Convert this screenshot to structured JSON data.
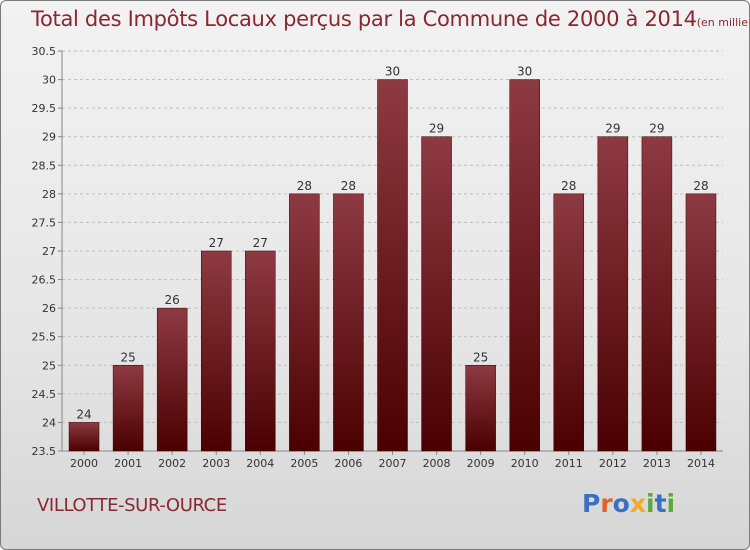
{
  "title": "Total des Impôts Locaux perçus par la Commune de 2000 à 2014",
  "title_unit": "(en milliers d'€)",
  "commune": "VILLOTTE-SUR-OURCE",
  "logo": {
    "text": "Proxiti",
    "letters": [
      {
        "ch": "P",
        "color": "#3a6fc1"
      },
      {
        "ch": "r",
        "color": "#e5612a"
      },
      {
        "ch": "o",
        "color": "#3a6fc1"
      },
      {
        "ch": "x",
        "color": "#f2a82a"
      },
      {
        "ch": "i",
        "color": "#5aab3c"
      },
      {
        "ch": "t",
        "color": "#3a6fc1"
      },
      {
        "ch": "i",
        "color": "#5aab3c"
      }
    ]
  },
  "colors": {
    "bar_top": "#8e3a43",
    "bar_bottom": "#4a0000",
    "title": "#8a2730",
    "axis": "#888888",
    "grid": "#bdbdbd"
  },
  "chart_data": {
    "type": "bar",
    "title": "Total des Impôts Locaux perçus par la Commune de 2000 à 2014",
    "xlabel": "",
    "ylabel": "",
    "categories": [
      "2000",
      "2001",
      "2002",
      "2003",
      "2004",
      "2005",
      "2006",
      "2007",
      "2008",
      "2009",
      "2010",
      "2011",
      "2012",
      "2013",
      "2014"
    ],
    "values": [
      24,
      25,
      26,
      27,
      27,
      28,
      28,
      30,
      29,
      25,
      30,
      28,
      29,
      29,
      28
    ],
    "labels": [
      "24",
      "25",
      "26",
      "27",
      "27",
      "28",
      "28",
      "30",
      "29",
      "25",
      "30",
      "28",
      "29",
      "29",
      "28"
    ],
    "ylim": [
      23.5,
      30.5
    ],
    "yticks": [
      23.5,
      24,
      24.5,
      25,
      25.5,
      26,
      26.5,
      27,
      27.5,
      28,
      28.5,
      29,
      29.5,
      30,
      30.5
    ],
    "ytick_labels": [
      "23.5",
      "24",
      "24.5",
      "25",
      "25.5",
      "26",
      "26.5",
      "27",
      "27.5",
      "28",
      "28.5",
      "29",
      "29.5",
      "30",
      "30.5"
    ],
    "grid": true
  }
}
